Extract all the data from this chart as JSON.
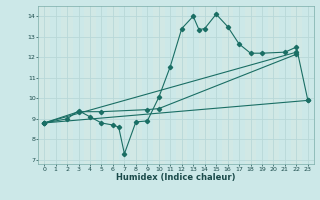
{
  "bg_color": "#cce8e8",
  "grid_color": "#b8d8d8",
  "line_color": "#1a6e64",
  "xlabel": "Humidex (Indice chaleur)",
  "xlim": [
    -0.5,
    23.5
  ],
  "ylim": [
    6.8,
    14.5
  ],
  "yticks": [
    7,
    8,
    9,
    10,
    11,
    12,
    13,
    14
  ],
  "xticks": [
    0,
    1,
    2,
    3,
    4,
    5,
    6,
    7,
    8,
    9,
    10,
    11,
    12,
    13,
    14,
    15,
    16,
    17,
    18,
    19,
    20,
    21,
    22,
    23
  ],
  "line1_x": [
    0,
    2,
    3,
    4,
    5,
    6,
    6.5,
    7,
    8,
    9,
    10,
    11,
    12,
    13,
    13.5,
    14,
    15,
    16,
    17,
    18,
    19,
    21,
    22,
    23
  ],
  "line1_y": [
    8.8,
    9.0,
    9.4,
    9.1,
    8.8,
    8.7,
    8.6,
    7.3,
    8.85,
    8.9,
    10.05,
    11.55,
    13.4,
    14.0,
    13.35,
    13.4,
    14.1,
    13.5,
    12.65,
    12.2,
    12.2,
    12.25,
    12.5,
    9.9
  ],
  "line2_x": [
    0,
    22
  ],
  "line2_y": [
    8.8,
    12.25
  ],
  "line3_x": [
    0,
    23
  ],
  "line3_y": [
    8.8,
    9.9
  ],
  "line4_x": [
    0,
    3,
    5,
    9,
    10,
    22
  ],
  "line4_y": [
    8.8,
    9.35,
    9.35,
    9.45,
    9.5,
    12.15
  ]
}
